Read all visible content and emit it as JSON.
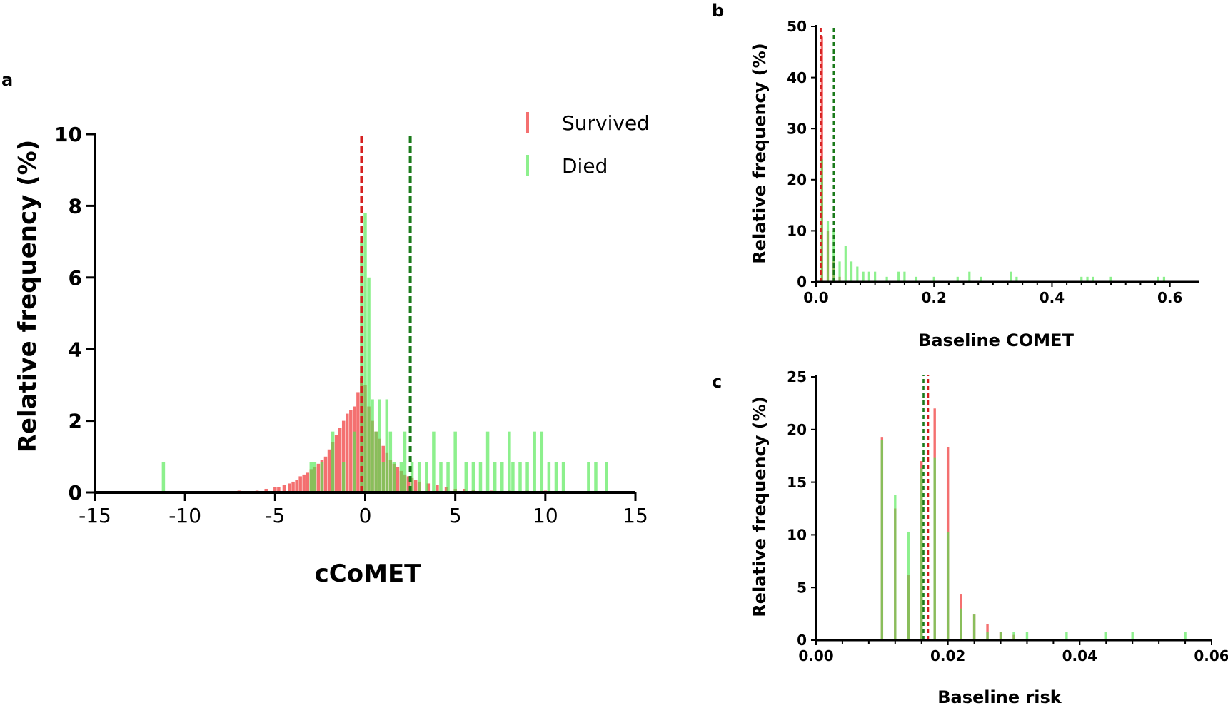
{
  "colors": {
    "survived": "#f04040",
    "died": "#50e850",
    "survived_median": "#d62020",
    "died_median": "#1a7a1a",
    "axis": "#000000"
  },
  "chart_data": [
    {
      "panel": "a",
      "type": "bar",
      "xlabel": "cCoMET",
      "ylabel": "Relative frequency (%)",
      "xlim": [
        -15,
        15
      ],
      "ylim": [
        0,
        10
      ],
      "xticks": [
        -15,
        -10,
        -5,
        0,
        5,
        10,
        15
      ],
      "yticks": [
        0,
        2,
        4,
        6,
        8,
        10
      ],
      "legend": {
        "placement": "top-right",
        "entries": [
          "Survived",
          "Died"
        ]
      },
      "medians": {
        "Survived": -0.2,
        "Died": 2.5
      },
      "series": [
        {
          "name": "Survived",
          "x": [
            -7.0,
            -6.0,
            -5.5,
            -5.0,
            -4.8,
            -4.5,
            -4.2,
            -4.0,
            -3.8,
            -3.6,
            -3.4,
            -3.2,
            -3.0,
            -2.8,
            -2.6,
            -2.4,
            -2.2,
            -2.0,
            -1.8,
            -1.6,
            -1.4,
            -1.2,
            -1.0,
            -0.8,
            -0.6,
            -0.4,
            -0.2,
            0.0,
            0.2,
            0.4,
            0.6,
            0.8,
            1.0,
            1.2,
            1.4,
            1.6,
            1.8,
            2.0,
            2.2,
            2.4,
            2.6,
            2.8,
            3.0,
            3.5,
            4.0,
            4.5,
            5.0,
            5.5,
            6.0,
            7.0,
            8.0,
            9.0,
            10.0,
            11.0,
            12.0
          ],
          "values": [
            0.05,
            0.05,
            0.1,
            0.15,
            0.15,
            0.2,
            0.25,
            0.3,
            0.35,
            0.45,
            0.5,
            0.55,
            0.65,
            0.7,
            0.8,
            0.9,
            1.0,
            1.2,
            1.4,
            1.6,
            1.8,
            2.0,
            2.2,
            2.3,
            2.4,
            2.8,
            3.2,
            3.0,
            2.4,
            2.0,
            1.7,
            1.5,
            1.3,
            1.1,
            0.9,
            0.8,
            0.7,
            0.6,
            0.5,
            0.45,
            0.4,
            0.35,
            0.3,
            0.25,
            0.2,
            0.15,
            0.1,
            0.1,
            0.08,
            0.05,
            0.05,
            0.05,
            0.05,
            0.03,
            0.03
          ]
        },
        {
          "name": "Died",
          "x": [
            -11.2,
            -3.0,
            -2.8,
            -2.4,
            -1.8,
            -1.2,
            -0.6,
            -0.2,
            0.0,
            0.2,
            0.4,
            0.6,
            0.8,
            1.0,
            1.2,
            1.4,
            1.6,
            2.0,
            2.2,
            2.6,
            3.0,
            3.4,
            3.8,
            4.2,
            4.6,
            5.0,
            5.6,
            6.0,
            6.4,
            6.8,
            7.2,
            7.6,
            8.0,
            8.2,
            8.6,
            9.0,
            9.4,
            9.8,
            10.2,
            10.6,
            11.0,
            12.4,
            12.8,
            13.4
          ],
          "values": [
            0.85,
            0.85,
            0.85,
            0.85,
            1.7,
            0.85,
            1.7,
            7.0,
            7.8,
            6.0,
            2.6,
            1.7,
            2.6,
            0.85,
            2.6,
            1.7,
            0.85,
            0.85,
            1.7,
            0.85,
            0.85,
            0.85,
            1.7,
            0.85,
            0.85,
            1.7,
            0.85,
            0.85,
            0.85,
            1.7,
            0.85,
            0.85,
            1.7,
            0.85,
            0.85,
            0.85,
            1.7,
            1.7,
            0.85,
            0.85,
            0.85,
            0.85,
            0.85,
            0.85
          ]
        }
      ]
    },
    {
      "panel": "b",
      "type": "bar",
      "xlabel": "Baseline COMET",
      "ylabel": "Relative frequency (%)",
      "xlim": [
        0,
        0.65
      ],
      "ylim": [
        0,
        50
      ],
      "xticks": [
        0.0,
        0.2,
        0.4,
        0.6
      ],
      "yticks": [
        0,
        10,
        20,
        30,
        40,
        50
      ],
      "medians": {
        "Survived": 0.008,
        "Died": 0.03
      },
      "series": [
        {
          "name": "Survived",
          "x": [
            0.0,
            0.01,
            0.02,
            0.03,
            0.04
          ],
          "values": [
            33,
            48,
            10,
            4,
            1
          ]
        },
        {
          "name": "Died",
          "x": [
            0.0,
            0.01,
            0.02,
            0.03,
            0.04,
            0.05,
            0.06,
            0.07,
            0.08,
            0.09,
            0.1,
            0.12,
            0.14,
            0.15,
            0.17,
            0.2,
            0.24,
            0.26,
            0.28,
            0.33,
            0.34,
            0.45,
            0.46,
            0.47,
            0.5,
            0.58,
            0.59
          ],
          "values": [
            3,
            24,
            12,
            10,
            4,
            7,
            4,
            3,
            2,
            2,
            2,
            1,
            2,
            2,
            1,
            1,
            1,
            2,
            1,
            2,
            1,
            1,
            1,
            1,
            1,
            1,
            1
          ]
        }
      ]
    },
    {
      "panel": "c",
      "type": "bar",
      "xlabel": "Baseline risk",
      "ylabel": "Relative frequency (%)",
      "xlim": [
        0,
        0.06
      ],
      "ylim": [
        0,
        25
      ],
      "xticks": [
        0.0,
        0.02,
        0.04,
        0.06
      ],
      "yticks": [
        0,
        5,
        10,
        15,
        20,
        25
      ],
      "medians": {
        "Survived": 0.017,
        "Died": 0.0163
      },
      "series": [
        {
          "name": "Survived",
          "x": [
            0.01,
            0.012,
            0.014,
            0.016,
            0.018,
            0.02,
            0.022,
            0.024,
            0.026,
            0.028,
            0.03
          ],
          "values": [
            19.3,
            12.5,
            6.2,
            17.0,
            22.0,
            18.3,
            4.4,
            2.5,
            1.5,
            0.8,
            0.5
          ]
        },
        {
          "name": "Died",
          "x": [
            0.01,
            0.012,
            0.014,
            0.016,
            0.018,
            0.02,
            0.022,
            0.024,
            0.026,
            0.028,
            0.03,
            0.032,
            0.038,
            0.044,
            0.048,
            0.056
          ],
          "values": [
            19.0,
            13.8,
            10.3,
            16.3,
            17.3,
            10.3,
            3.0,
            2.5,
            0.8,
            0.8,
            0.8,
            0.8,
            0.8,
            0.8,
            0.8,
            0.8
          ]
        }
      ]
    }
  ]
}
